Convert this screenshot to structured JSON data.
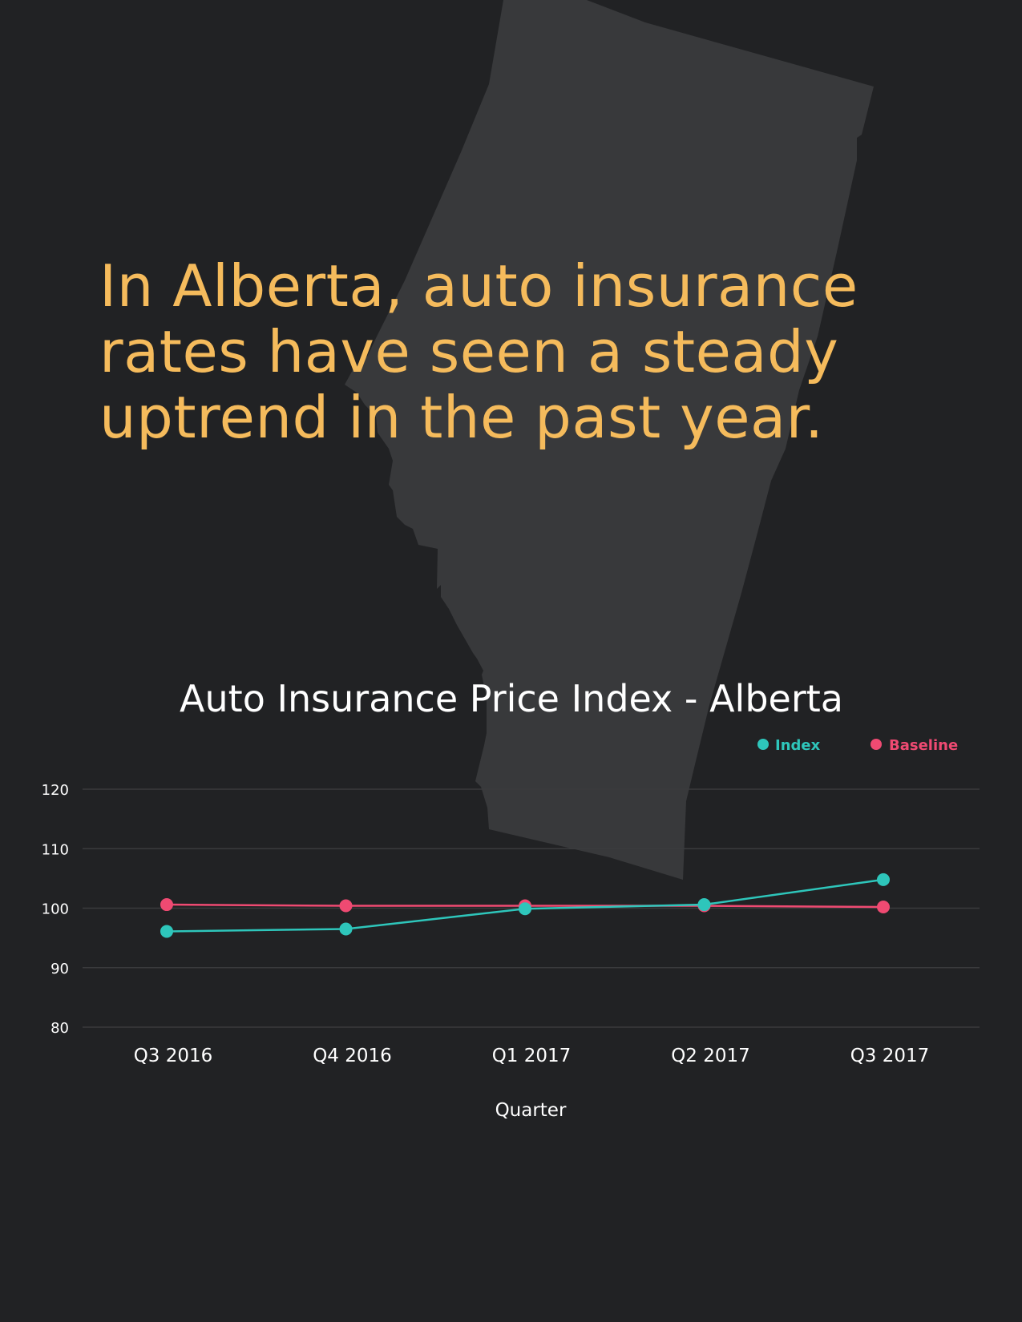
{
  "headline": {
    "lines": [
      "In Alberta, auto insurance",
      "rates have seen a steady",
      "uptrend in the past year."
    ]
  },
  "colors": {
    "background": "#212224",
    "map_fill": "#38393b",
    "headline": "#f5bb5c",
    "index": "#2ec6bb",
    "baseline": "#ef4a72",
    "gridline": "#3a3b3d",
    "text": "#ffffff"
  },
  "chart_data": {
    "type": "line",
    "title": "Auto Insurance Price Index - Alberta",
    "xlabel": "Quarter",
    "ylabel": "",
    "categories": [
      "Q3 2016",
      "Q4 2016",
      "Q1 2017",
      "Q2 2017",
      "Q3 2017"
    ],
    "series": [
      {
        "name": "Index",
        "color": "#2ec6bb",
        "values": [
          96.1,
          96.5,
          99.9,
          100.6,
          104.8
        ]
      },
      {
        "name": "Baseline",
        "color": "#ef4a72",
        "values": [
          100.6,
          100.4,
          100.4,
          100.4,
          100.2
        ]
      }
    ],
    "ylim": [
      80,
      120
    ],
    "yticks": [
      120,
      110,
      100,
      90,
      80
    ],
    "grid": true,
    "legend_position": "top-right"
  }
}
